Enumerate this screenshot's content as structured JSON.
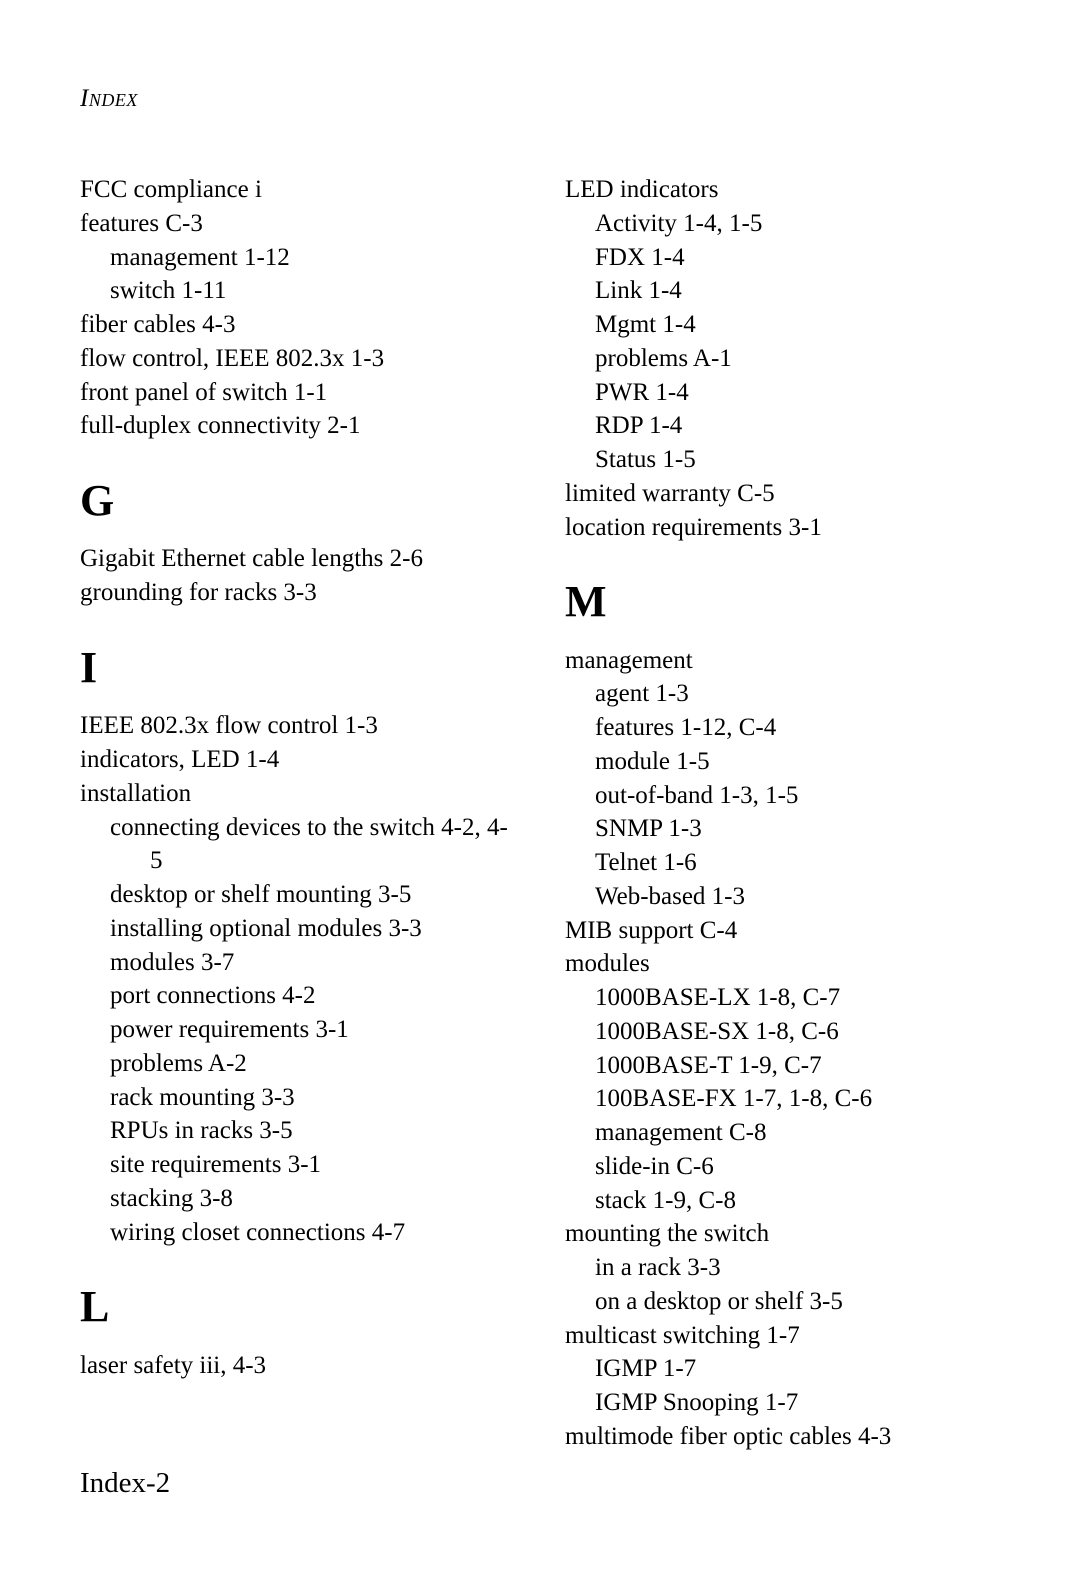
{
  "header": "Index",
  "pageNumber": "Index-2",
  "left": {
    "f_entries": [
      {
        "t": "FCC compliance  i",
        "cls": "entry"
      },
      {
        "t": "features  C-3",
        "cls": "entry"
      },
      {
        "t": "management  1-12",
        "cls": "entry sub1"
      },
      {
        "t": "switch  1-11",
        "cls": "entry sub1"
      },
      {
        "t": "fiber cables  4-3",
        "cls": "entry"
      },
      {
        "t": "flow control, IEEE 802.3x  1-3",
        "cls": "entry"
      },
      {
        "t": "front panel of switch  1-1",
        "cls": "entry"
      },
      {
        "t": "full-duplex connectivity  2-1",
        "cls": "entry"
      }
    ],
    "g_letter": "G",
    "g_entries": [
      {
        "t": "Gigabit Ethernet cable lengths  2-6",
        "cls": "entry"
      },
      {
        "t": "grounding for racks  3-3",
        "cls": "entry"
      }
    ],
    "i_letter": "I",
    "i_entries": [
      {
        "t": "IEEE 802.3x flow control  1-3",
        "cls": "entry"
      },
      {
        "t": "indicators, LED  1-4",
        "cls": "entry"
      },
      {
        "t": "installation",
        "cls": "entry"
      },
      {
        "t": "connecting devices to the switch  4-2, 4-5",
        "cls": "entry hang-sub"
      },
      {
        "t": "desktop or shelf mounting  3-5",
        "cls": "entry sub1"
      },
      {
        "t": "installing optional modules  3-3",
        "cls": "entry sub1"
      },
      {
        "t": "modules  3-7",
        "cls": "entry sub1"
      },
      {
        "t": "port connections  4-2",
        "cls": "entry sub1"
      },
      {
        "t": "power requirements  3-1",
        "cls": "entry sub1"
      },
      {
        "t": "problems  A-2",
        "cls": "entry sub1"
      },
      {
        "t": "rack mounting  3-3",
        "cls": "entry sub1"
      },
      {
        "t": "RPUs in racks  3-5",
        "cls": "entry sub1"
      },
      {
        "t": "site requirements  3-1",
        "cls": "entry sub1"
      },
      {
        "t": "stacking  3-8",
        "cls": "entry sub1"
      },
      {
        "t": "wiring closet connections  4-7",
        "cls": "entry sub1"
      }
    ],
    "l_letter": "L",
    "l_entries": [
      {
        "t": "laser safety  iii, 4-3",
        "cls": "entry"
      }
    ]
  },
  "right": {
    "l_entries": [
      {
        "t": "LED indicators",
        "cls": "entry"
      },
      {
        "t": "Activity  1-4, 1-5",
        "cls": "entry sub1"
      },
      {
        "t": "FDX  1-4",
        "cls": "entry sub1"
      },
      {
        "t": "Link  1-4",
        "cls": "entry sub1"
      },
      {
        "t": "Mgmt  1-4",
        "cls": "entry sub1"
      },
      {
        "t": "problems  A-1",
        "cls": "entry sub1"
      },
      {
        "t": "PWR  1-4",
        "cls": "entry sub1"
      },
      {
        "t": "RDP  1-4",
        "cls": "entry sub1"
      },
      {
        "t": "Status  1-5",
        "cls": "entry sub1"
      },
      {
        "t": "limited warranty  C-5",
        "cls": "entry"
      },
      {
        "t": "location requirements  3-1",
        "cls": "entry"
      }
    ],
    "m_letter": "M",
    "m_entries": [
      {
        "t": "management",
        "cls": "entry"
      },
      {
        "t": "agent  1-3",
        "cls": "entry sub1"
      },
      {
        "t": "features  1-12, C-4",
        "cls": "entry sub1"
      },
      {
        "t": "module  1-5",
        "cls": "entry sub1"
      },
      {
        "t": "out-of-band  1-3, 1-5",
        "cls": "entry sub1"
      },
      {
        "t": "SNMP  1-3",
        "cls": "entry sub1"
      },
      {
        "t": "Telnet  1-6",
        "cls": "entry sub1"
      },
      {
        "t": "Web-based  1-3",
        "cls": "entry sub1"
      },
      {
        "t": "MIB support  C-4",
        "cls": "entry"
      },
      {
        "t": "modules",
        "cls": "entry"
      },
      {
        "t": "1000BASE-LX  1-8, C-7",
        "cls": "entry sub1"
      },
      {
        "t": "1000BASE-SX  1-8, C-6",
        "cls": "entry sub1"
      },
      {
        "t": "1000BASE-T  1-9, C-7",
        "cls": "entry sub1"
      },
      {
        "t": "100BASE-FX  1-7, 1-8, C-6",
        "cls": "entry sub1"
      },
      {
        "t": "management  C-8",
        "cls": "entry sub1"
      },
      {
        "t": "slide-in  C-6",
        "cls": "entry sub1"
      },
      {
        "t": "stack  1-9, C-8",
        "cls": "entry sub1"
      },
      {
        "t": "mounting the switch",
        "cls": "entry"
      },
      {
        "t": "in a rack  3-3",
        "cls": "entry sub1"
      },
      {
        "t": "on a desktop or shelf  3-5",
        "cls": "entry sub1"
      },
      {
        "t": "multicast switching  1-7",
        "cls": "entry"
      },
      {
        "t": "IGMP  1-7",
        "cls": "entry sub1"
      },
      {
        "t": "IGMP Snooping  1-7",
        "cls": "entry sub1"
      },
      {
        "t": "multimode fiber optic cables  4-3",
        "cls": "entry"
      }
    ]
  }
}
